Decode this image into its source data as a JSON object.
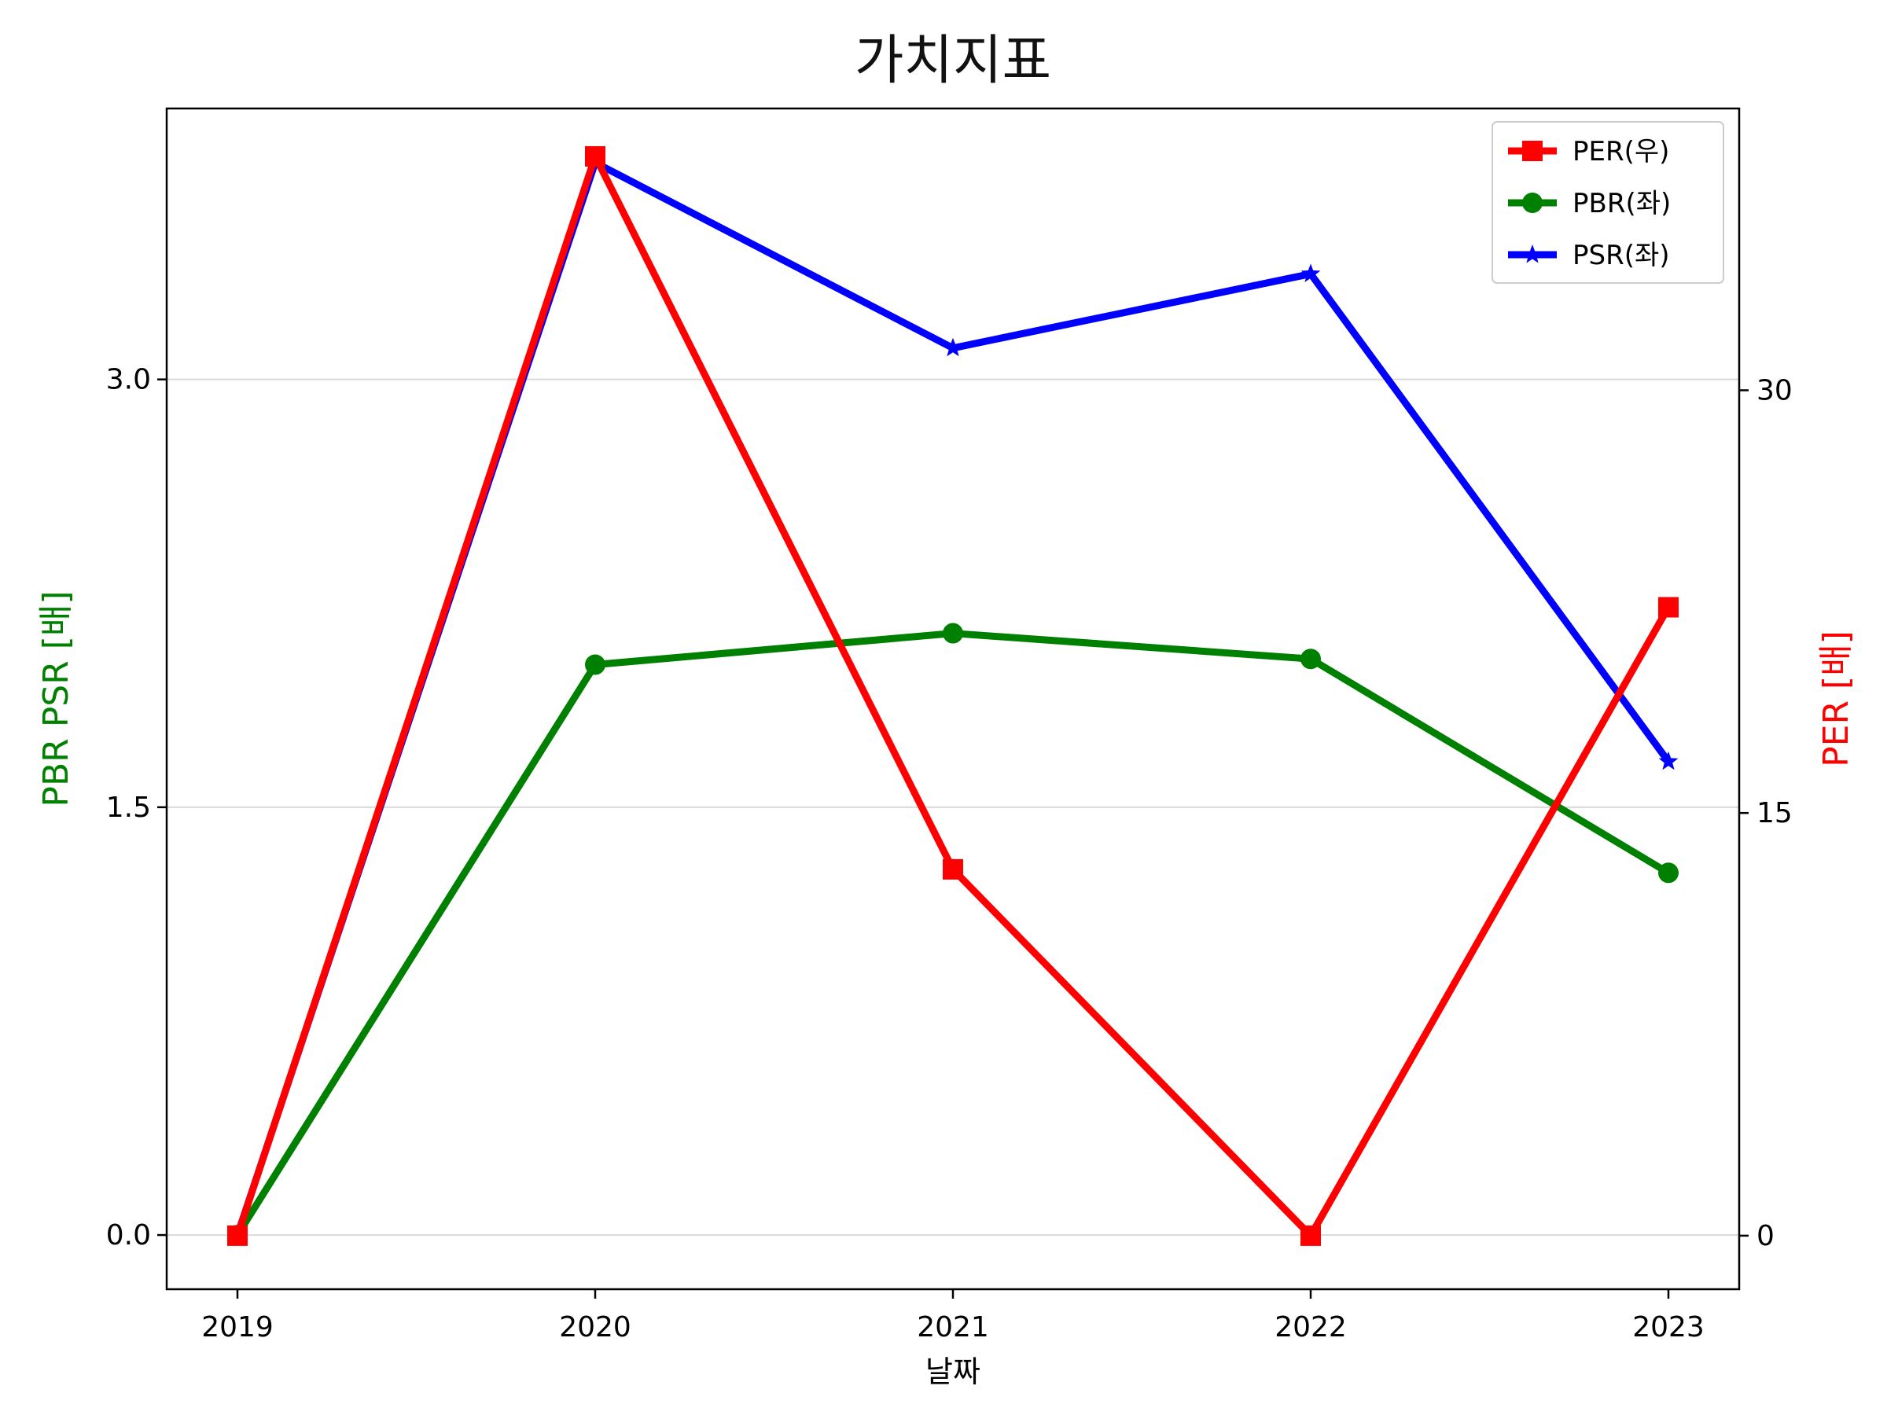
{
  "chart_data": {
    "type": "line",
    "title": "가치지표",
    "xlabel": "날짜",
    "ylabel_left": "PBR PSR [배]",
    "ylabel_right": "PER [배]",
    "x": [
      "2019",
      "2020",
      "2021",
      "2022",
      "2023"
    ],
    "y_left_ticks": [
      "0.0",
      "1.5",
      "3.0"
    ],
    "y_right_ticks": [
      "0",
      "15",
      "30"
    ],
    "ylim_left": [
      -0.19,
      3.95
    ],
    "ylim_right": [
      -1.9,
      40.0
    ],
    "grid": "horizontal",
    "legend_position": "top-right",
    "series": [
      {
        "name": "PER(우)",
        "axis": "right",
        "color": "#ff0000",
        "marker": "square",
        "values": [
          0,
          38.3,
          13.0,
          0,
          22.3
        ]
      },
      {
        "name": "PBR(좌)",
        "axis": "left",
        "color": "#008000",
        "marker": "circle",
        "values": [
          0,
          2.0,
          2.11,
          2.02,
          1.27
        ]
      },
      {
        "name": "PSR(좌)",
        "axis": "left",
        "color": "#0000ff",
        "marker": "star",
        "values": [
          0,
          3.76,
          3.11,
          3.37,
          1.66
        ]
      }
    ]
  }
}
